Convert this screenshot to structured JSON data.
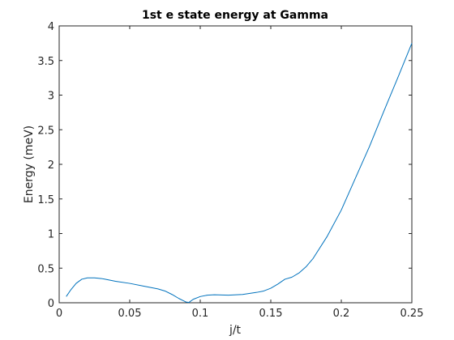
{
  "chart_data": {
    "type": "line",
    "title": "1st e state energy at Gamma",
    "xlabel": "j/t",
    "ylabel": "Energy (meV)",
    "xlim": [
      0,
      0.25
    ],
    "ylim": [
      0,
      4
    ],
    "xticks": [
      0,
      0.05,
      0.1,
      0.15,
      0.2,
      0.25
    ],
    "xtick_labels": [
      "0",
      "0.05",
      "0.1",
      "0.15",
      "0.2",
      "0.25"
    ],
    "yticks": [
      0,
      0.5,
      1,
      1.5,
      2,
      2.5,
      3,
      3.5,
      4
    ],
    "ytick_labels": [
      "0",
      "0.5",
      "1",
      "1.5",
      "2",
      "2.5",
      "3",
      "3.5",
      "4"
    ],
    "grid": false,
    "line_color": "#0072bd",
    "series": [
      {
        "x": [
          0.005,
          0.008,
          0.012,
          0.016,
          0.02,
          0.025,
          0.03,
          0.035,
          0.04,
          0.05,
          0.06,
          0.07,
          0.075,
          0.08,
          0.085,
          0.088,
          0.09,
          0.092,
          0.095,
          0.1,
          0.105,
          0.11,
          0.12,
          0.13,
          0.14,
          0.145,
          0.15,
          0.155,
          0.16,
          0.165,
          0.17,
          0.175,
          0.18,
          0.19,
          0.2,
          0.21,
          0.22,
          0.23,
          0.24,
          0.25
        ],
        "y": [
          0.09,
          0.18,
          0.28,
          0.34,
          0.36,
          0.36,
          0.35,
          0.33,
          0.31,
          0.28,
          0.24,
          0.2,
          0.17,
          0.12,
          0.06,
          0.03,
          0.01,
          0.005,
          0.05,
          0.09,
          0.11,
          0.115,
          0.11,
          0.12,
          0.15,
          0.17,
          0.21,
          0.27,
          0.34,
          0.37,
          0.43,
          0.52,
          0.64,
          0.96,
          1.34,
          1.8,
          2.26,
          2.76,
          3.25,
          3.75
        ]
      }
    ]
  }
}
